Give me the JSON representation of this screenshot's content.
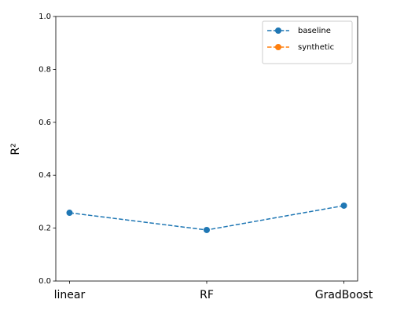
{
  "chart_data": {
    "type": "line",
    "ylabel": "R²",
    "categories": [
      "linear",
      "RF",
      "GradBoost"
    ],
    "series": [
      {
        "name": "baseline",
        "color": "#1f77b4",
        "values": [
          0.258,
          0.193,
          0.285
        ]
      },
      {
        "name": "synthetic",
        "color": "#ff7f0e",
        "values": [
          null,
          null,
          null
        ]
      }
    ],
    "ylim": [
      0,
      1
    ],
    "yticks": [
      {
        "value": 0,
        "label": "0.0"
      },
      {
        "value": 0.2,
        "label": "0.2"
      },
      {
        "value": 0.4,
        "label": "0.4"
      },
      {
        "value": 0.6,
        "label": "0.6"
      },
      {
        "value": 0.8,
        "label": "0.8"
      },
      {
        "value": 1,
        "label": "1.0"
      }
    ],
    "grid": false,
    "legend": "upper right",
    "line_style": "dashed",
    "marker": "circle"
  }
}
